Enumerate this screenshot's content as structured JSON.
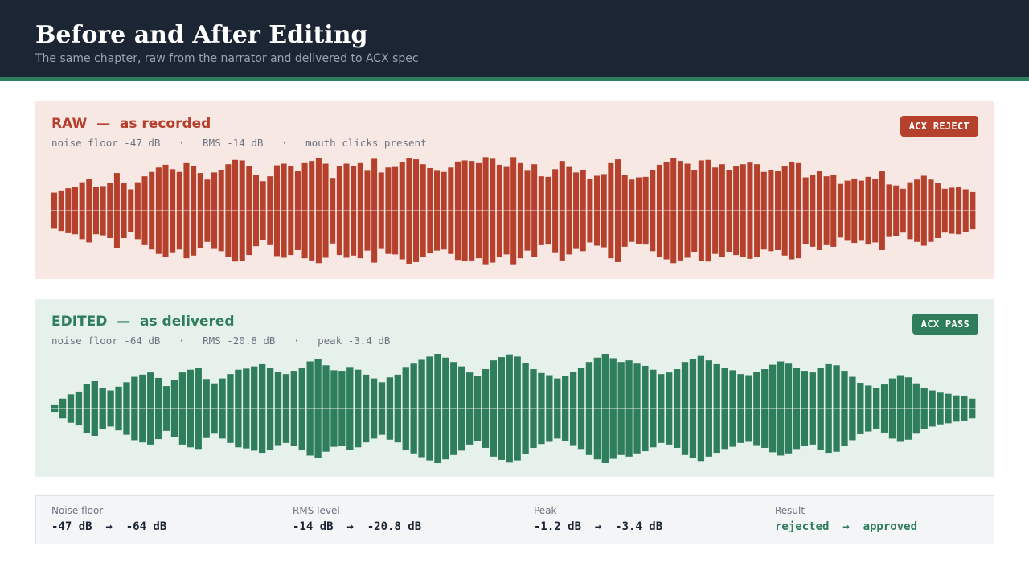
{
  "header": {
    "title": "Before and After Editing",
    "subtitle": "The same chapter, raw from the narrator and delivered to ACX spec"
  },
  "raw_panel": {
    "title": "RAW  —  as recorded",
    "meta": "noise floor -47 dB   ·   RMS -14 dB   ·   mouth clicks present",
    "badge": "ACX REJECT",
    "color": "#b5402c",
    "waveform_envelope": [
      0.33,
      0.37,
      0.41,
      0.43,
      0.52,
      0.58,
      0.43,
      0.45,
      0.5,
      0.69,
      0.5,
      0.39,
      0.52,
      0.63,
      0.71,
      0.79,
      0.84,
      0.76,
      0.71,
      0.87,
      0.82,
      0.69,
      0.57,
      0.7,
      0.74,
      0.85,
      0.93,
      0.92,
      0.81,
      0.65,
      0.54,
      0.63,
      0.83,
      0.86,
      0.81,
      0.72,
      0.87,
      0.91,
      0.96,
      0.86,
      0.6,
      0.81,
      0.86,
      0.82,
      0.87,
      0.73,
      0.95,
      0.7,
      0.79,
      0.8,
      0.89,
      0.97,
      0.94,
      0.85,
      0.78,
      0.73,
      0.71,
      0.79,
      0.9,
      0.92,
      0.91,
      0.87,
      0.98,
      0.95,
      0.84,
      0.8,
      0.98,
      0.87,
      0.73,
      0.85,
      0.63,
      0.62,
      0.76,
      0.91,
      0.8,
      0.7,
      0.74,
      0.58,
      0.64,
      0.67,
      0.87,
      0.94,
      0.66,
      0.57,
      0.61,
      0.62,
      0.74,
      0.84,
      0.89,
      0.96,
      0.91,
      0.86,
      0.75,
      0.92,
      0.93,
      0.79,
      0.85,
      0.75,
      0.81,
      0.85,
      0.88,
      0.85,
      0.71,
      0.74,
      0.72,
      0.82,
      0.89,
      0.87,
      0.61,
      0.66,
      0.72,
      0.63,
      0.66,
      0.49,
      0.55,
      0.59,
      0.55,
      0.62,
      0.58,
      0.72,
      0.48,
      0.46,
      0.4,
      0.52,
      0.57,
      0.64,
      0.57,
      0.5,
      0.4,
      0.42,
      0.43,
      0.39,
      0.34
    ]
  },
  "edited_panel": {
    "title": "EDITED  —  as delivered",
    "meta": "noise floor -64 dB   ·   RMS -20.8 dB   ·   peak -3.4 dB",
    "badge": "ACX PASS",
    "color": "#2e7d5b",
    "waveform_envelope": [
      0.06,
      0.18,
      0.26,
      0.31,
      0.45,
      0.5,
      0.37,
      0.33,
      0.4,
      0.48,
      0.58,
      0.62,
      0.66,
      0.56,
      0.41,
      0.52,
      0.66,
      0.71,
      0.74,
      0.54,
      0.46,
      0.55,
      0.63,
      0.71,
      0.73,
      0.77,
      0.81,
      0.75,
      0.67,
      0.63,
      0.69,
      0.75,
      0.86,
      0.9,
      0.79,
      0.7,
      0.69,
      0.76,
      0.71,
      0.62,
      0.55,
      0.48,
      0.57,
      0.62,
      0.76,
      0.82,
      0.89,
      0.95,
      1.0,
      0.93,
      0.85,
      0.77,
      0.66,
      0.6,
      0.72,
      0.88,
      0.94,
      0.99,
      0.95,
      0.83,
      0.72,
      0.65,
      0.61,
      0.55,
      0.59,
      0.67,
      0.74,
      0.85,
      0.93,
      1.0,
      0.92,
      0.85,
      0.88,
      0.82,
      0.78,
      0.71,
      0.63,
      0.66,
      0.72,
      0.85,
      0.91,
      0.96,
      0.88,
      0.81,
      0.74,
      0.7,
      0.63,
      0.61,
      0.67,
      0.72,
      0.8,
      0.86,
      0.82,
      0.74,
      0.69,
      0.66,
      0.75,
      0.81,
      0.79,
      0.69,
      0.58,
      0.47,
      0.42,
      0.37,
      0.44,
      0.55,
      0.61,
      0.57,
      0.46,
      0.38,
      0.33,
      0.29,
      0.27,
      0.24,
      0.22,
      0.18
    ]
  },
  "stats": [
    {
      "label": "Noise floor",
      "value": "-47 dB  →  -64 dB",
      "status": "neutral"
    },
    {
      "label": "RMS level",
      "value": "-14 dB  →  -20.8 dB",
      "status": "neutral"
    },
    {
      "label": "Peak",
      "value": "-1.2 dB  →  -3.4 dB",
      "status": "neutral"
    },
    {
      "label": "Result",
      "value": "rejected  →  approved",
      "status": "good"
    }
  ]
}
